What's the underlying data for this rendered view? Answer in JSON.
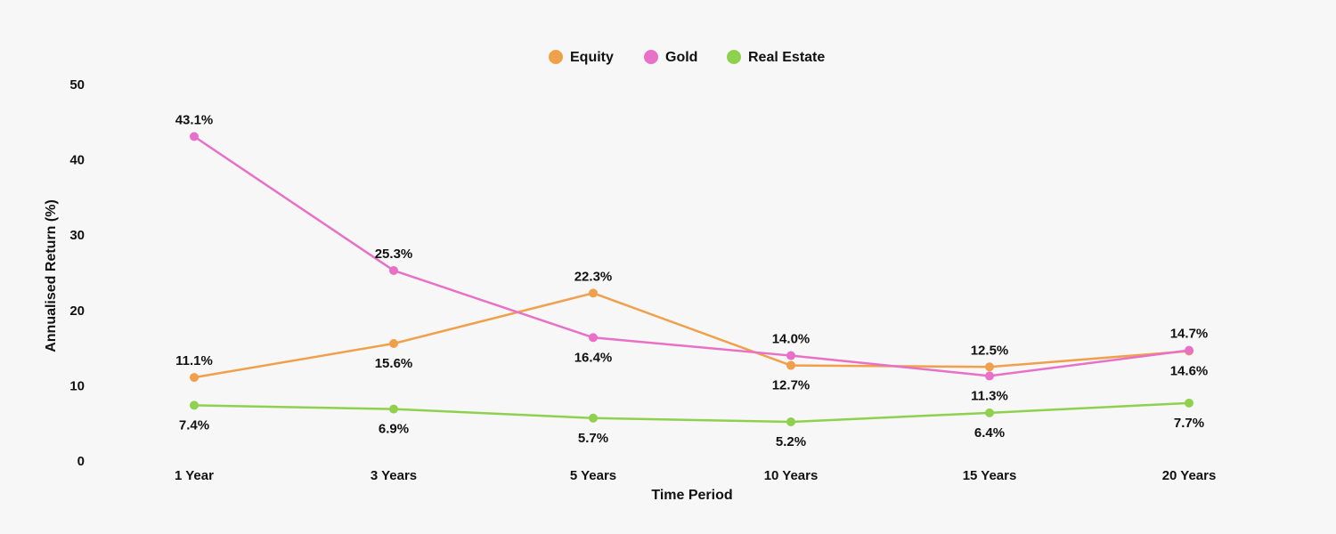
{
  "chart_data": {
    "type": "line",
    "categories": [
      "1 Year",
      "3 Years",
      "5 Years",
      "10 Years",
      "15 Years",
      "20 Years"
    ],
    "series": [
      {
        "name": "Equity",
        "color": "#f0a04b",
        "values": [
          11.1,
          15.6,
          22.3,
          12.7,
          12.5,
          14.6
        ],
        "labels": [
          "11.1%",
          "15.6%",
          "22.3%",
          "12.7%",
          "12.5%",
          "14.6%"
        ]
      },
      {
        "name": "Gold",
        "color": "#e870c6",
        "values": [
          43.1,
          25.3,
          16.4,
          14.0,
          11.3,
          14.7
        ],
        "labels": [
          "43.1%",
          "25.3%",
          "16.4%",
          "14.0%",
          "11.3%",
          "14.7%"
        ]
      },
      {
        "name": "Real Estate",
        "color": "#8fd14f",
        "values": [
          7.4,
          6.9,
          5.7,
          5.2,
          6.4,
          7.7
        ],
        "labels": [
          "7.4%",
          "6.9%",
          "5.7%",
          "5.2%",
          "6.4%",
          "7.7%"
        ]
      }
    ],
    "xlabel": "Time Period",
    "ylabel": "Annualised Return (%)",
    "ylim": [
      0,
      50
    ],
    "yticks": [
      "0",
      "10",
      "20",
      "30",
      "40",
      "50"
    ],
    "grid": false,
    "legend_position": "top-center"
  }
}
